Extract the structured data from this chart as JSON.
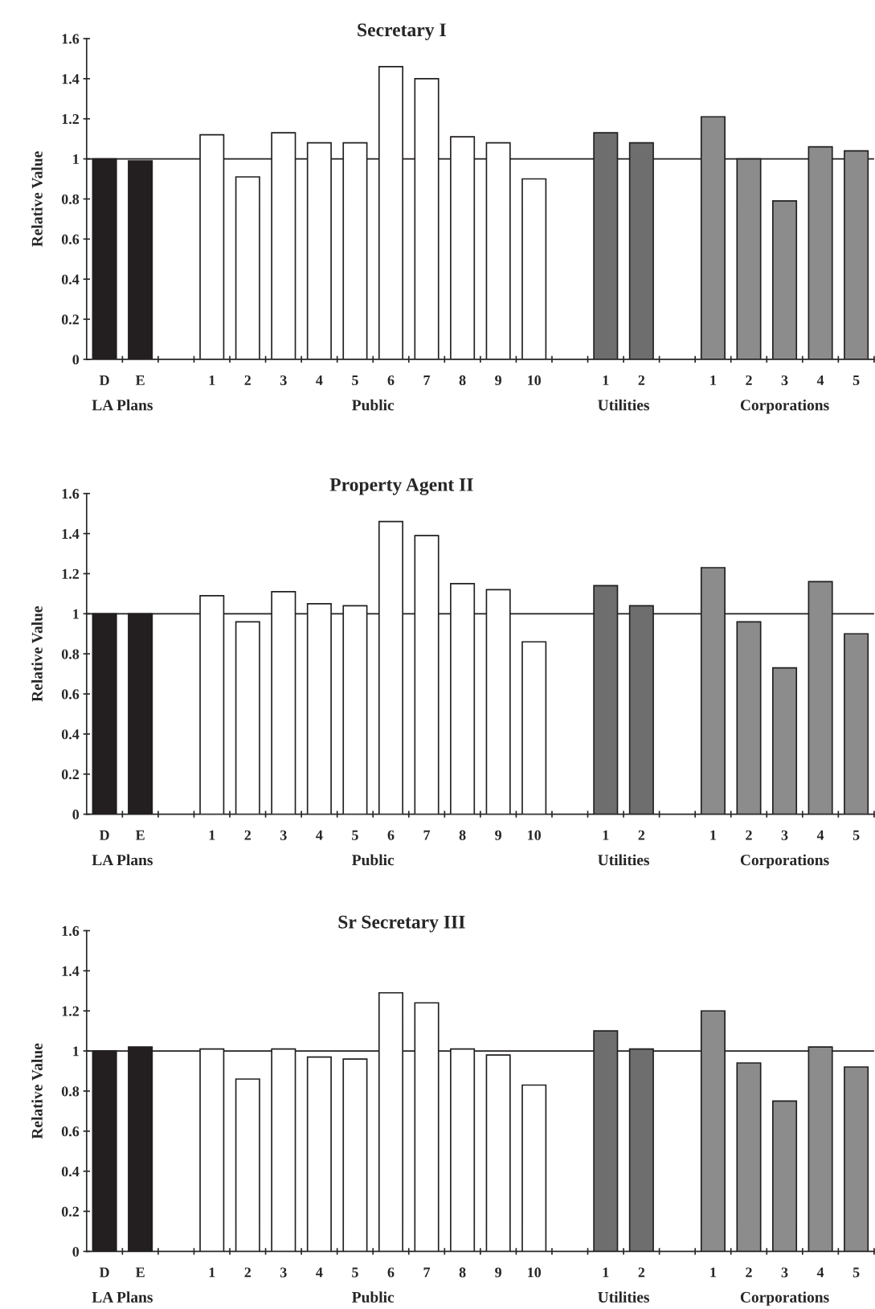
{
  "chart_data": [
    {
      "type": "bar",
      "title": "Secretary I",
      "ylabel": "Relative Value",
      "categories": [
        "D",
        "E",
        null,
        "1",
        "2",
        "3",
        "4",
        "5",
        "6",
        "7",
        "8",
        "9",
        "10",
        null,
        "1",
        "2",
        null,
        "1",
        "2",
        "3",
        "4",
        "5"
      ],
      "values": [
        1.0,
        0.99,
        null,
        1.12,
        0.91,
        1.13,
        1.08,
        1.08,
        1.46,
        1.4,
        1.11,
        1.08,
        0.9,
        null,
        1.13,
        1.08,
        null,
        1.21,
        1.0,
        0.79,
        1.06,
        1.04
      ],
      "colors": [
        "#231f20",
        "#231f20",
        null,
        "#ffffff",
        "#ffffff",
        "#ffffff",
        "#ffffff",
        "#ffffff",
        "#ffffff",
        "#ffffff",
        "#ffffff",
        "#ffffff",
        "#ffffff",
        null,
        "#6e6e6e",
        "#6e6e6e",
        null,
        "#8c8c8c",
        "#8c8c8c",
        "#8c8c8c",
        "#8c8c8c",
        "#8c8c8c"
      ],
      "ylim": [
        0,
        1.6
      ],
      "yticks": [
        0,
        0.2,
        0.4,
        0.6,
        0.8,
        1,
        1.2,
        1.4,
        1.6
      ],
      "ref_lines": [
        {
          "axis": "y",
          "value": 1,
          "color": "#231f20"
        }
      ],
      "annotations": [
        "LA Plans",
        "Public",
        "Utilities",
        "Corporations"
      ],
      "grid": false,
      "legend": false
    },
    {
      "type": "bar",
      "title": "Property Agent II",
      "ylabel": "Relative Value",
      "categories": [
        "D",
        "E",
        null,
        "1",
        "2",
        "3",
        "4",
        "5",
        "6",
        "7",
        "8",
        "9",
        "10",
        null,
        "1",
        "2",
        null,
        "1",
        "2",
        "3",
        "4",
        "5"
      ],
      "values": [
        1.0,
        1.0,
        null,
        1.09,
        0.96,
        1.11,
        1.05,
        1.04,
        1.46,
        1.39,
        1.15,
        1.12,
        0.86,
        null,
        1.14,
        1.04,
        null,
        1.23,
        0.96,
        0.73,
        1.16,
        0.9
      ],
      "colors": [
        "#231f20",
        "#231f20",
        null,
        "#ffffff",
        "#ffffff",
        "#ffffff",
        "#ffffff",
        "#ffffff",
        "#ffffff",
        "#ffffff",
        "#ffffff",
        "#ffffff",
        "#ffffff",
        null,
        "#6e6e6e",
        "#6e6e6e",
        null,
        "#8c8c8c",
        "#8c8c8c",
        "#8c8c8c",
        "#8c8c8c",
        "#8c8c8c"
      ],
      "ylim": [
        0,
        1.6
      ],
      "yticks": [
        0,
        0.2,
        0.4,
        0.6,
        0.8,
        1,
        1.2,
        1.4,
        1.6
      ],
      "ref_lines": [
        {
          "axis": "y",
          "value": 1,
          "color": "#231f20"
        }
      ],
      "annotations": [
        "LA Plans",
        "Public",
        "Utilities",
        "Corporations"
      ],
      "grid": false,
      "legend": false
    },
    {
      "type": "bar",
      "title": "Sr Secretary III",
      "ylabel": "Relative Value",
      "categories": [
        "D",
        "E",
        null,
        "1",
        "2",
        "3",
        "4",
        "5",
        "6",
        "7",
        "8",
        "9",
        "10",
        null,
        "1",
        "2",
        null,
        "1",
        "2",
        "3",
        "4",
        "5"
      ],
      "values": [
        1.0,
        1.02,
        null,
        1.01,
        0.86,
        1.01,
        0.97,
        0.96,
        1.29,
        1.24,
        1.01,
        0.98,
        0.83,
        null,
        1.1,
        1.01,
        null,
        1.2,
        0.94,
        0.75,
        1.02,
        0.92
      ],
      "colors": [
        "#231f20",
        "#231f20",
        null,
        "#ffffff",
        "#ffffff",
        "#ffffff",
        "#ffffff",
        "#ffffff",
        "#ffffff",
        "#ffffff",
        "#ffffff",
        "#ffffff",
        "#ffffff",
        null,
        "#6e6e6e",
        "#6e6e6e",
        null,
        "#8c8c8c",
        "#8c8c8c",
        "#8c8c8c",
        "#8c8c8c",
        "#8c8c8c"
      ],
      "ylim": [
        0,
        1.6
      ],
      "yticks": [
        0,
        0.2,
        0.4,
        0.6,
        0.8,
        1,
        1.2,
        1.4,
        1.6
      ],
      "ref_lines": [
        {
          "axis": "y",
          "value": 1,
          "color": "#231f20"
        }
      ],
      "annotations": [
        "LA Plans",
        "Public",
        "Utilities",
        "Corporations"
      ],
      "grid": false,
      "legend": false
    }
  ]
}
